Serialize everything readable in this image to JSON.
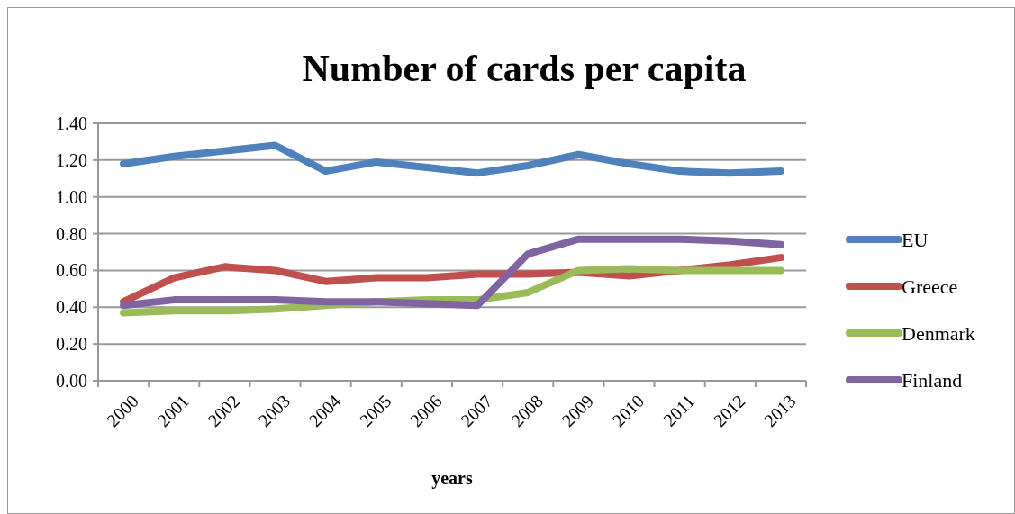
{
  "chart_data": {
    "type": "line",
    "title": "Number of cards per capita",
    "xlabel": "years",
    "categories": [
      "2000",
      "2001",
      "2002",
      "2003",
      "2004",
      "2005",
      "2006",
      "2007",
      "2008",
      "2009",
      "2010",
      "2011",
      "2012",
      "2013"
    ],
    "series": [
      {
        "name": "EU",
        "color": "#4f81bd",
        "values": [
          1.18,
          1.22,
          1.25,
          1.28,
          1.14,
          1.19,
          1.16,
          1.13,
          1.17,
          1.23,
          1.18,
          1.14,
          1.13,
          1.14
        ]
      },
      {
        "name": "Greece",
        "color": "#c0504d",
        "values": [
          0.43,
          0.56,
          0.62,
          0.6,
          0.54,
          0.56,
          0.56,
          0.58,
          0.58,
          0.59,
          0.57,
          0.6,
          0.63,
          0.67
        ]
      },
      {
        "name": "Denmark",
        "color": "#9bbb59",
        "values": [
          0.37,
          0.38,
          0.38,
          0.39,
          0.41,
          0.43,
          0.44,
          0.44,
          0.48,
          0.6,
          0.61,
          0.6,
          0.6,
          0.6
        ]
      },
      {
        "name": "Finland",
        "color": "#8064a2",
        "values": [
          0.41,
          0.44,
          0.44,
          0.44,
          0.43,
          0.43,
          0.42,
          0.41,
          0.69,
          0.77,
          0.77,
          0.77,
          0.76,
          0.74
        ]
      }
    ],
    "ylim": [
      0,
      1.4
    ],
    "yticks": [
      {
        "value": 0,
        "label": "0.00"
      },
      {
        "value": 0.2,
        "label": "0.20"
      },
      {
        "value": 0.4,
        "label": "0.40"
      },
      {
        "value": 0.6,
        "label": "0.60"
      },
      {
        "value": 0.8,
        "label": "0.80"
      },
      {
        "value": 1,
        "label": "1.00"
      },
      {
        "value": 1.2,
        "label": "1.20"
      },
      {
        "value": 1.4,
        "label": "1.40"
      }
    ],
    "grid": "y",
    "legend": "right",
    "line_style": "solid",
    "marker": "none"
  }
}
